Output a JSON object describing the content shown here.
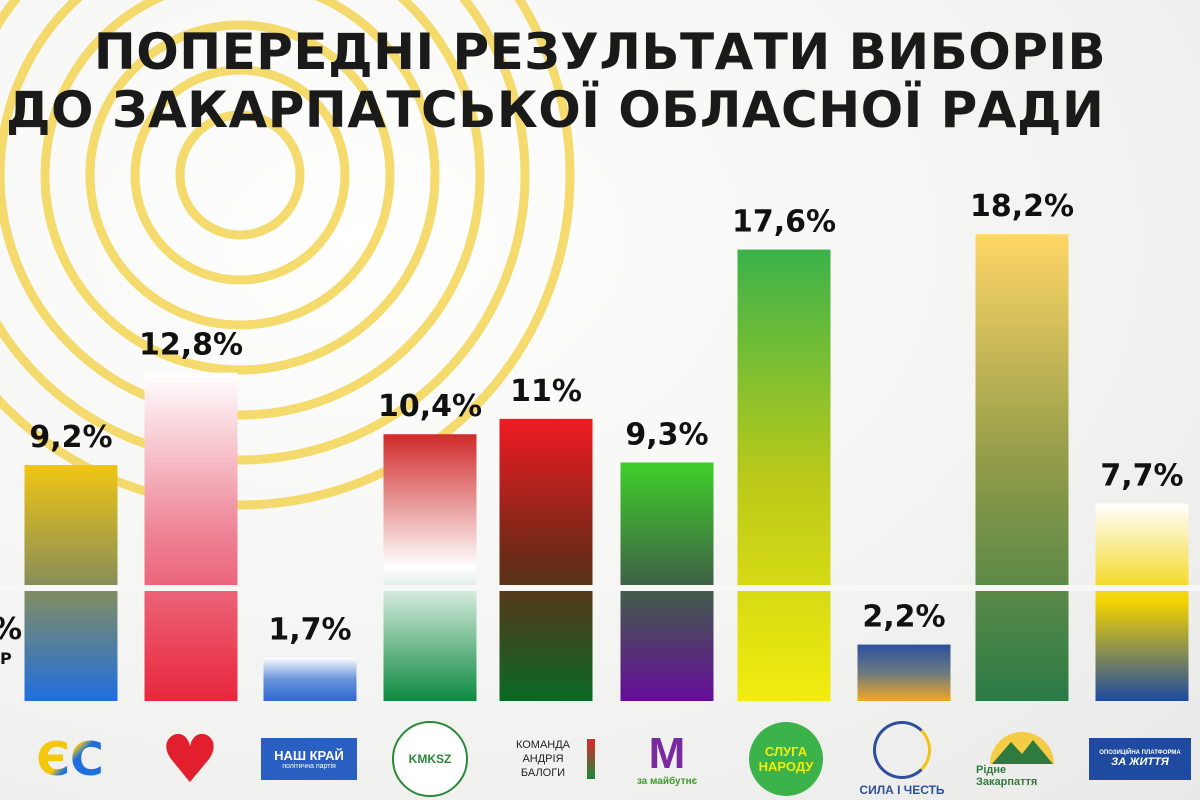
{
  "title": {
    "line1": "ПОПЕРЕДНІ РЕЗУЛЬТАТИ ВИБОРІВ",
    "line2": "ДО ЗАКАРПАТСЬКОЇ ОБЛАСНОЇ РАДИ"
  },
  "edge_text": {
    "value": "%",
    "sub": "Р"
  },
  "chart_data": {
    "type": "bar",
    "title": "ПОПЕРЕДНІ РЕЗУЛЬТАТИ ВИБОРІВ ДО ЗАКАРПАТСЬКОЇ ОБЛАСНОЇ РАДИ",
    "xlabel": "",
    "ylabel": "",
    "ylim": [
      0,
      20
    ],
    "categories": [
      "ЄС",
      "Батьківщина",
      "Наш край",
      "KMKSZ",
      "Команда Андрія Балоги",
      "За майбутнє",
      "Слуга народу",
      "Сила і честь",
      "Рідне Закарпаття",
      "Опозиційна платформа — За життя"
    ],
    "values": [
      9.2,
      12.8,
      1.7,
      10.4,
      11,
      9.3,
      17.6,
      2.2,
      18.2,
      7.7
    ],
    "labels": [
      "9,2%",
      "12,8%",
      "1,7%",
      "10,4%",
      "11%",
      "9,3%",
      "17,6%",
      "2,2%",
      "18,2%",
      "7,7%"
    ],
    "colors": [
      [
        "#f0c613",
        "#8a8f58",
        "#1f6fe0"
      ],
      [
        "#ffffff",
        "#ee8093",
        "#e8273d"
      ],
      [
        "#ffffff",
        "#6a94db",
        "#2f67cf"
      ],
      [
        "#cf2a2a",
        "#ffffff",
        "#0d8a3f"
      ],
      [
        "#f01b23",
        "#6a2a16",
        "#0a6a25"
      ],
      [
        "#3fd02a",
        "#3f6445",
        "#660c9a"
      ],
      [
        "#3bb24a",
        "#b9c91a",
        "#f2ec0e"
      ],
      [
        "#2e4fa0",
        "#6a7a80",
        "#f1a726"
      ],
      [
        "#ffd666",
        "#8f9a48",
        "#2a7a46"
      ],
      [
        "#ffffff",
        "#f2d200",
        "#1e4aa0"
      ]
    ]
  },
  "logos": [
    {
      "text": "ЄС"
    },
    {
      "text": "♥"
    },
    {
      "text": "НАШ КРАЙ",
      "sub": "політична партія"
    },
    {
      "text": "KMKSZ"
    },
    {
      "text": "КОМАНДА АНДРІЯ БАЛОГИ"
    },
    {
      "text": "M",
      "sub": "за майбутнє"
    },
    {
      "text": "СЛУГА НАРОДУ"
    },
    {
      "text": "СИЛА І ЧЕСТЬ"
    },
    {
      "text": "Рідне Закарпаття"
    },
    {
      "text": "ОПОЗИЦІЙНА ПЛАТФОРМА",
      "sub": "ЗА ЖИТТЯ"
    }
  ]
}
